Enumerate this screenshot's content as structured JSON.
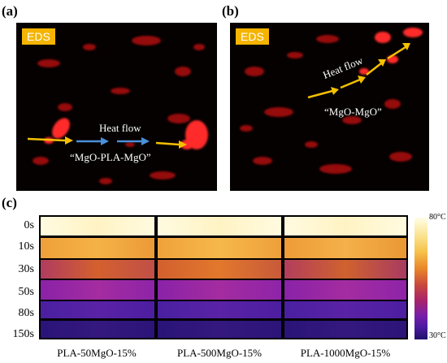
{
  "figure": {
    "panels": {
      "a": {
        "label": "(a)",
        "badge": "EDS",
        "heat_flow": "Heat flow",
        "caption": "“MgO-PLA-MgO”"
      },
      "b": {
        "label": "(b)",
        "badge": "EDS",
        "heat_flow": "Heat flow",
        "caption": "“MgO-MgO”"
      },
      "c": {
        "label": "(c)",
        "times": [
          "0s",
          "10s",
          "30s",
          "50s",
          "80s",
          "150s"
        ],
        "samples": [
          "PLA-50MgO-15%",
          "PLA-500MgO-15%",
          "PLA-1000MgO-15%"
        ],
        "scale_max": "80°C",
        "scale_min": "30°C"
      }
    },
    "colors": {
      "badge": "#f5b400",
      "arrow_yellow": "#f5c000",
      "arrow_blue": "#4a90d9",
      "eds_red": "#d01010"
    }
  }
}
